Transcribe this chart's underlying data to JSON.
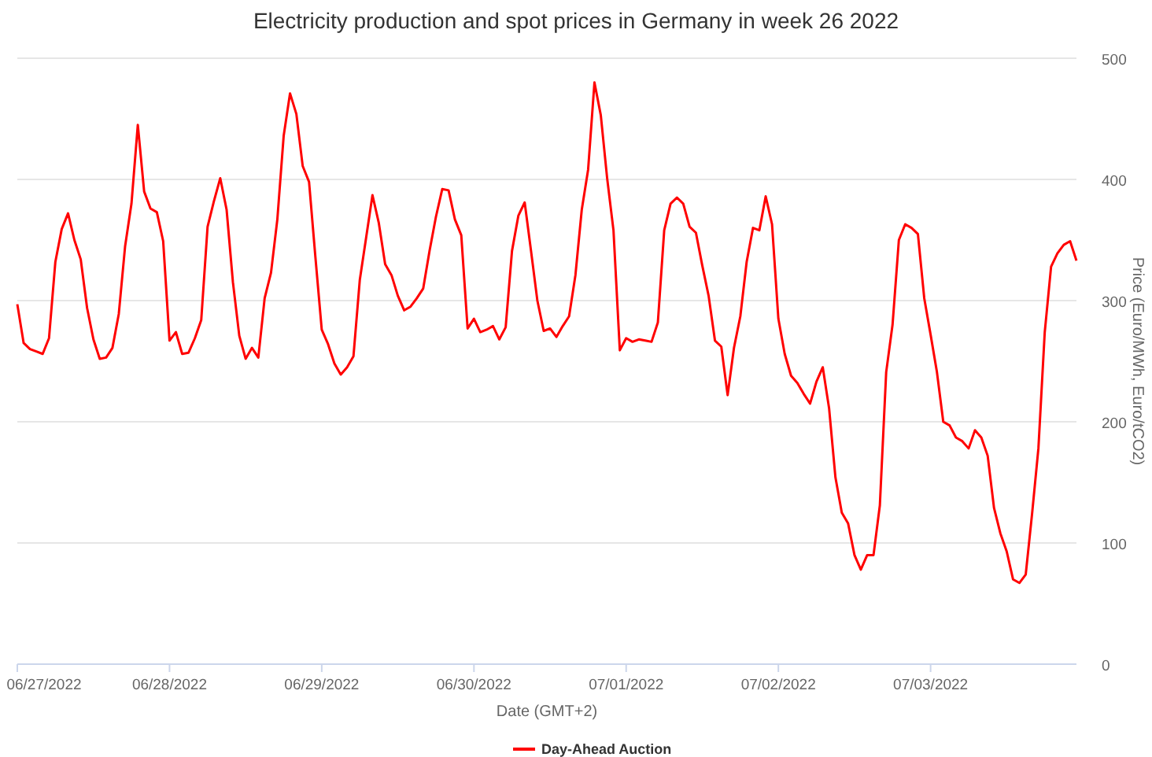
{
  "chart_data": {
    "type": "line",
    "title": "Electricity production and spot prices in Germany in week 26 2022",
    "xlabel": "Date (GMT+2)",
    "ylabel": "Price (Euro/MWh, Euro/tCO2)",
    "x": [
      "2022-06-27T00:00",
      "2022-06-27T01:00",
      "2022-06-27T02:00",
      "2022-06-27T03:00",
      "2022-06-27T04:00",
      "2022-06-27T05:00",
      "2022-06-27T06:00",
      "2022-06-27T07:00",
      "2022-06-27T08:00",
      "2022-06-27T09:00",
      "2022-06-27T10:00",
      "2022-06-27T11:00",
      "2022-06-27T12:00",
      "2022-06-27T13:00",
      "2022-06-27T14:00",
      "2022-06-27T15:00",
      "2022-06-27T16:00",
      "2022-06-27T17:00",
      "2022-06-27T18:00",
      "2022-06-27T19:00",
      "2022-06-27T20:00",
      "2022-06-27T21:00",
      "2022-06-27T22:00",
      "2022-06-27T23:00",
      "2022-06-28T00:00",
      "2022-06-28T01:00",
      "2022-06-28T02:00",
      "2022-06-28T03:00",
      "2022-06-28T04:00",
      "2022-06-28T05:00",
      "2022-06-28T06:00",
      "2022-06-28T07:00",
      "2022-06-28T08:00",
      "2022-06-28T09:00",
      "2022-06-28T10:00",
      "2022-06-28T11:00",
      "2022-06-28T12:00",
      "2022-06-28T13:00",
      "2022-06-28T14:00",
      "2022-06-28T15:00",
      "2022-06-28T16:00",
      "2022-06-28T17:00",
      "2022-06-28T18:00",
      "2022-06-28T19:00",
      "2022-06-28T20:00",
      "2022-06-28T21:00",
      "2022-06-28T22:00",
      "2022-06-28T23:00",
      "2022-06-29T00:00",
      "2022-06-29T01:00",
      "2022-06-29T02:00",
      "2022-06-29T03:00",
      "2022-06-29T04:00",
      "2022-06-29T05:00",
      "2022-06-29T06:00",
      "2022-06-29T07:00",
      "2022-06-29T08:00",
      "2022-06-29T09:00",
      "2022-06-29T10:00",
      "2022-06-29T11:00",
      "2022-06-29T12:00",
      "2022-06-29T13:00",
      "2022-06-29T14:00",
      "2022-06-29T15:00",
      "2022-06-29T16:00",
      "2022-06-29T17:00",
      "2022-06-29T18:00",
      "2022-06-29T19:00",
      "2022-06-29T20:00",
      "2022-06-29T21:00",
      "2022-06-29T22:00",
      "2022-06-29T23:00",
      "2022-06-30T00:00",
      "2022-06-30T01:00",
      "2022-06-30T02:00",
      "2022-06-30T03:00",
      "2022-06-30T04:00",
      "2022-06-30T05:00",
      "2022-06-30T06:00",
      "2022-06-30T07:00",
      "2022-06-30T08:00",
      "2022-06-30T09:00",
      "2022-06-30T10:00",
      "2022-06-30T11:00",
      "2022-06-30T12:00",
      "2022-06-30T13:00",
      "2022-06-30T14:00",
      "2022-06-30T15:00",
      "2022-06-30T16:00",
      "2022-06-30T17:00",
      "2022-06-30T18:00",
      "2022-06-30T19:00",
      "2022-06-30T20:00",
      "2022-06-30T21:00",
      "2022-06-30T22:00",
      "2022-06-30T23:00",
      "2022-07-01T00:00",
      "2022-07-01T01:00",
      "2022-07-01T02:00",
      "2022-07-01T03:00",
      "2022-07-01T04:00",
      "2022-07-01T05:00",
      "2022-07-01T06:00",
      "2022-07-01T07:00",
      "2022-07-01T08:00",
      "2022-07-01T09:00",
      "2022-07-01T10:00",
      "2022-07-01T11:00",
      "2022-07-01T12:00",
      "2022-07-01T13:00",
      "2022-07-01T14:00",
      "2022-07-01T15:00",
      "2022-07-01T16:00",
      "2022-07-01T17:00",
      "2022-07-01T18:00",
      "2022-07-01T19:00",
      "2022-07-01T20:00",
      "2022-07-01T21:00",
      "2022-07-01T22:00",
      "2022-07-01T23:00",
      "2022-07-02T00:00",
      "2022-07-02T01:00",
      "2022-07-02T02:00",
      "2022-07-02T03:00",
      "2022-07-02T04:00",
      "2022-07-02T05:00",
      "2022-07-02T06:00",
      "2022-07-02T07:00",
      "2022-07-02T08:00",
      "2022-07-02T09:00",
      "2022-07-02T10:00",
      "2022-07-02T11:00",
      "2022-07-02T12:00",
      "2022-07-02T13:00",
      "2022-07-02T14:00",
      "2022-07-02T15:00",
      "2022-07-02T16:00",
      "2022-07-02T17:00",
      "2022-07-02T18:00",
      "2022-07-02T19:00",
      "2022-07-02T20:00",
      "2022-07-02T21:00",
      "2022-07-02T22:00",
      "2022-07-02T23:00",
      "2022-07-03T00:00",
      "2022-07-03T01:00",
      "2022-07-03T02:00",
      "2022-07-03T03:00",
      "2022-07-03T04:00",
      "2022-07-03T05:00",
      "2022-07-03T06:00",
      "2022-07-03T07:00",
      "2022-07-03T08:00",
      "2022-07-03T09:00",
      "2022-07-03T10:00",
      "2022-07-03T11:00",
      "2022-07-03T12:00",
      "2022-07-03T13:00",
      "2022-07-03T14:00",
      "2022-07-03T15:00",
      "2022-07-03T16:00",
      "2022-07-03T17:00",
      "2022-07-03T18:00",
      "2022-07-03T19:00",
      "2022-07-03T20:00",
      "2022-07-03T21:00",
      "2022-07-03T22:00",
      "2022-07-03T23:00"
    ],
    "series": [
      {
        "name": "Day-Ahead Auction",
        "color": "#ff0000",
        "values": [
          297,
          265,
          260,
          258,
          256,
          269,
          332,
          359,
          372,
          350,
          334,
          294,
          268,
          252,
          253,
          261,
          289,
          345,
          380,
          445,
          390,
          376,
          373,
          349,
          267,
          274,
          256,
          257,
          269,
          284,
          361,
          382,
          401,
          375,
          315,
          271,
          252,
          261,
          253,
          302,
          323,
          367,
          436,
          471,
          454,
          411,
          398,
          336,
          276,
          264,
          248,
          239,
          245,
          254,
          317,
          352,
          387,
          364,
          330,
          321,
          304,
          292,
          295,
          302,
          310,
          341,
          369,
          392,
          391,
          367,
          354,
          277,
          285,
          274,
          276,
          279,
          268,
          278,
          341,
          370,
          381,
          341,
          300,
          275,
          277,
          270,
          279,
          287,
          321,
          375,
          408,
          480,
          453,
          401,
          358,
          259,
          269,
          266,
          268,
          267,
          266,
          282,
          358,
          380,
          385,
          380,
          361,
          356,
          329,
          304,
          267,
          262,
          222,
          261,
          287,
          332,
          360,
          358,
          386,
          363,
          285,
          256,
          238,
          232,
          223,
          215,
          233,
          245,
          211,
          154,
          125,
          116,
          90,
          78,
          90,
          90,
          131,
          241,
          280,
          350,
          363,
          360,
          355,
          302,
          272,
          241,
          200,
          197,
          187,
          184,
          178,
          193,
          187,
          172,
          129,
          108,
          93,
          70,
          67,
          74,
          124,
          178,
          274,
          328,
          339,
          346,
          349,
          333
        ]
      }
    ],
    "xlim": [
      "2022-06-27T00:00",
      "2022-07-03T23:00"
    ],
    "xticks": [
      {
        "value": "2022-06-27",
        "label": "06/27/2022"
      },
      {
        "value": "2022-06-28",
        "label": "06/28/2022"
      },
      {
        "value": "2022-06-29",
        "label": "06/29/2022"
      },
      {
        "value": "2022-06-30",
        "label": "06/30/2022"
      },
      {
        "value": "2022-07-01",
        "label": "07/01/2022"
      },
      {
        "value": "2022-07-02",
        "label": "07/02/2022"
      },
      {
        "value": "2022-07-03",
        "label": "07/03/2022"
      }
    ],
    "ylim": [
      0,
      500
    ],
    "yticks": [
      0,
      100,
      200,
      300,
      400,
      500
    ],
    "grid": "y",
    "legend": "bottom"
  }
}
